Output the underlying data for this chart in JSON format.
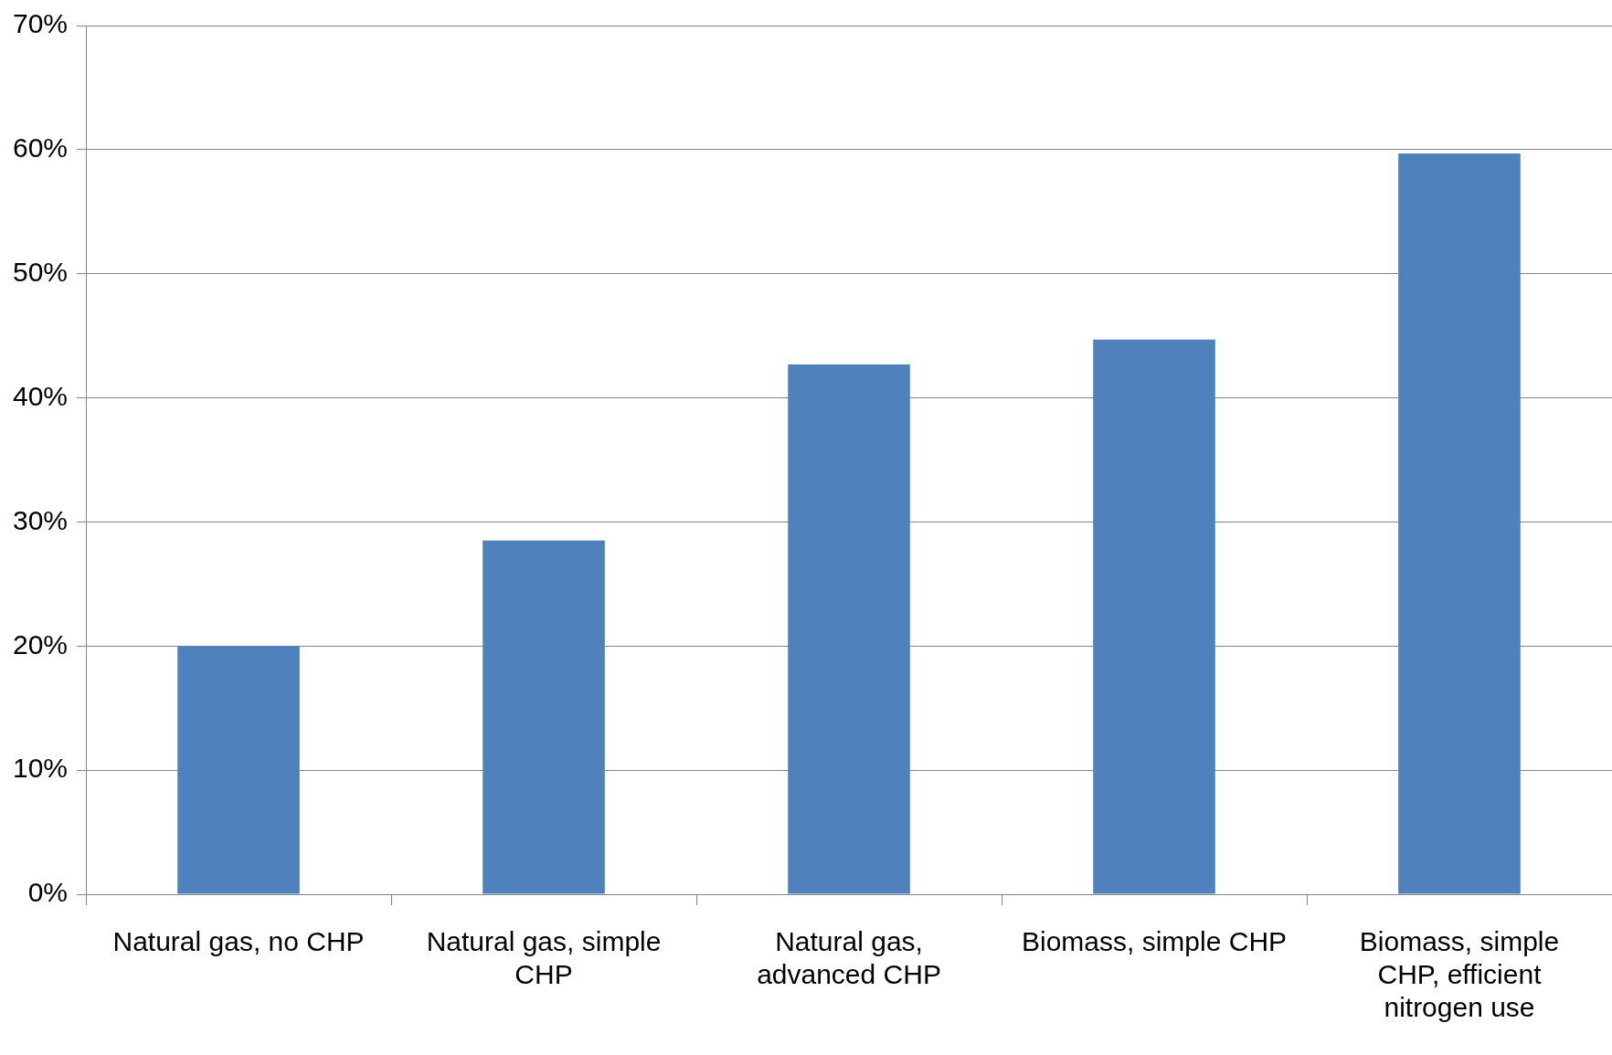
{
  "chart_data": {
    "type": "bar",
    "categories": [
      "Natural gas, no CHP",
      "Natural gas, simple CHP",
      "Natural gas, advanced CHP",
      "Biomass, simple CHP",
      "Biomass, simple CHP, efficient nitrogen use"
    ],
    "values": [
      20,
      28.5,
      42.7,
      44.7,
      59.7
    ],
    "color": "#4f81bd",
    "ylim": [
      0,
      70
    ],
    "yticks": [
      {
        "value": 0,
        "label": "0%"
      },
      {
        "value": 10,
        "label": "10%"
      },
      {
        "value": 20,
        "label": "20%"
      },
      {
        "value": 30,
        "label": "30%"
      },
      {
        "value": 40,
        "label": "40%"
      },
      {
        "value": 50,
        "label": "50%"
      },
      {
        "value": 60,
        "label": "60%"
      },
      {
        "value": 70,
        "label": "70%"
      }
    ],
    "grid": "y",
    "legend": false
  }
}
